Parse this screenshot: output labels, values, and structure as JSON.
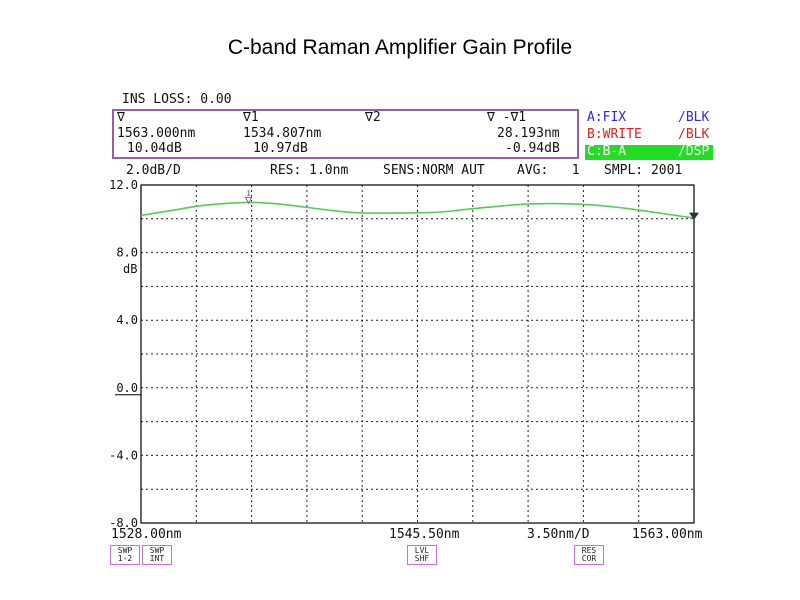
{
  "title": "C-band Raman Amplifier Gain Profile",
  "header": {
    "ins_loss": "INS LOSS: 0.00",
    "marker_col0": {
      "symbol": "∇",
      "wavelength": "1563.000nm",
      "level": "10.04dB"
    },
    "marker_col1": {
      "symbol": "∇1",
      "wavelength": "1534.807nm",
      "level": "10.97dB"
    },
    "marker_col2": {
      "symbol": "∇2"
    },
    "marker_col3": {
      "symbol": "∇ -∇1",
      "wavelength": "28.193nm",
      "level": "-0.94dB"
    },
    "traces": [
      {
        "name": "A:FIX",
        "state": "/BLK",
        "color": "#2a2ae0"
      },
      {
        "name": "B:WRITE",
        "state": "/BLK",
        "color": "#e02020"
      },
      {
        "name": "C:B-A",
        "state": "/DSP",
        "color": "#22dd22"
      }
    ],
    "status": {
      "scale": "2.0dB/D",
      "res": "RES: 1.0nm",
      "sens": "SENS:NORM AUT",
      "avg": "AVG:   1",
      "smpl": "SMPL: 2001"
    }
  },
  "chart_data": {
    "type": "line",
    "title": "C-band Raman Amplifier Gain Profile",
    "xlabel": "",
    "ylabel": "dB",
    "xlim": [
      1528.0,
      1563.0
    ],
    "ylim": [
      -8.0,
      12.0
    ],
    "grid": true,
    "y_ticks": [
      "12.0",
      "8.0",
      "4.0",
      "0.0",
      "-4.0",
      "-8.0"
    ],
    "y_tick_values": [
      12,
      8,
      4,
      0,
      -4,
      -8
    ],
    "y_unit": "dB",
    "x_tick_labels": {
      "start": "1528.00nm",
      "center": "1545.50nm",
      "span": "3.50nm/D",
      "stop": "1563.00nm"
    },
    "series": [
      {
        "color": "#55cc55",
        "x": [
          1528.0,
          1530.0,
          1532.0,
          1534.8,
          1537.0,
          1540.0,
          1542.0,
          1545.0,
          1547.0,
          1549.0,
          1552.0,
          1554.0,
          1556.0,
          1558.0,
          1560.0,
          1563.0
        ],
        "y": [
          10.2,
          10.5,
          10.8,
          10.97,
          10.85,
          10.5,
          10.35,
          10.35,
          10.4,
          10.6,
          10.85,
          10.9,
          10.85,
          10.7,
          10.45,
          10.04
        ]
      }
    ],
    "markers": [
      {
        "label": "1",
        "x": 1534.807,
        "y": 10.97,
        "color": "#9c5aa8"
      },
      {
        "label": "",
        "x": 1563.0,
        "y": 10.04,
        "color": "#333333"
      }
    ]
  },
  "softkeys": {
    "swp12": [
      "SWP",
      "1-2"
    ],
    "swpint": [
      "SWP",
      "INT"
    ],
    "lvlshf": [
      "LVL",
      "SHF"
    ],
    "rescor": [
      "RES",
      "COR"
    ]
  }
}
